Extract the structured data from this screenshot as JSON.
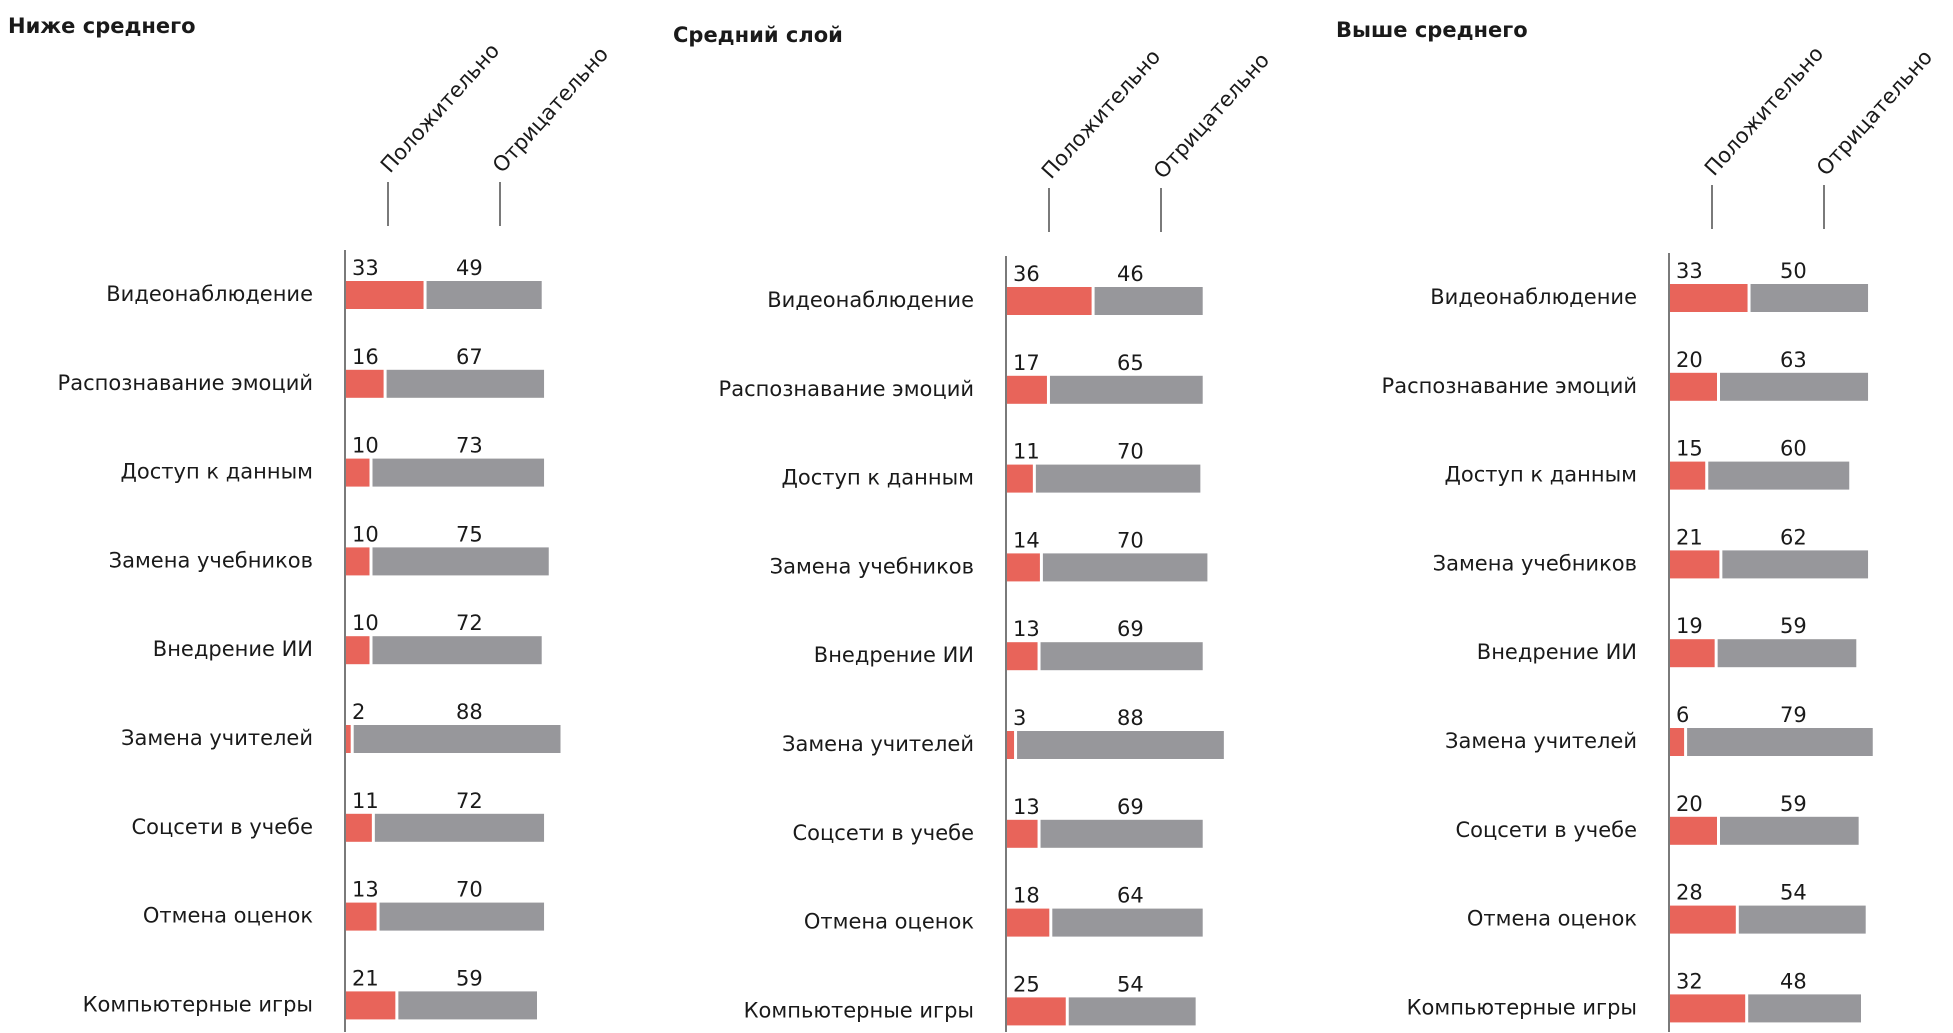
{
  "colors": {
    "positive": "#e8645a",
    "negative": "#97979b",
    "axis": "#333333",
    "text": "#1a1a1a"
  },
  "chart_data": [
    {
      "type": "bar",
      "stacked": true,
      "orientation": "horizontal",
      "title": "Ниже среднего",
      "categories": [
        "Видеонаблюдение",
        "Распознавание эмоций",
        "Доступ к данным",
        "Замена учебников",
        "Внедрение ИИ",
        "Замена учителей",
        "Соцсети в учебе",
        "Отмена оценок",
        "Компьютерные игры"
      ],
      "series": [
        {
          "name": "Положительно",
          "values": [
            33,
            16,
            10,
            10,
            10,
            2,
            11,
            13,
            21
          ]
        },
        {
          "name": "Отрицательно",
          "values": [
            49,
            67,
            73,
            75,
            72,
            88,
            72,
            70,
            59
          ]
        }
      ]
    },
    {
      "type": "bar",
      "stacked": true,
      "orientation": "horizontal",
      "title": "Средний слой",
      "categories": [
        "Видеонаблюдение",
        "Распознавание эмоций",
        "Доступ к данным",
        "Замена учебников",
        "Внедрение ИИ",
        "Замена учителей",
        "Соцсети в учебе",
        "Отмена оценок",
        "Компьютерные игры"
      ],
      "series": [
        {
          "name": "Положительно",
          "values": [
            36,
            17,
            11,
            14,
            13,
            3,
            13,
            18,
            25
          ]
        },
        {
          "name": "Отрицательно",
          "values": [
            46,
            65,
            70,
            70,
            69,
            88,
            69,
            64,
            54
          ]
        }
      ]
    },
    {
      "type": "bar",
      "stacked": true,
      "orientation": "horizontal",
      "title": "Выше среднего",
      "categories": [
        "Видеонаблюдение",
        "Распознавание эмоций",
        "Доступ к данным",
        "Замена учебников",
        "Внедрение ИИ",
        "Замена учителей",
        "Соцсети в учебе",
        "Отмена оценок",
        "Компьютерные игры"
      ],
      "series": [
        {
          "name": "Положительно",
          "values": [
            33,
            20,
            15,
            21,
            19,
            6,
            20,
            28,
            32
          ]
        },
        {
          "name": "Отрицательно",
          "values": [
            50,
            63,
            60,
            62,
            59,
            79,
            59,
            54,
            48
          ]
        }
      ]
    }
  ]
}
